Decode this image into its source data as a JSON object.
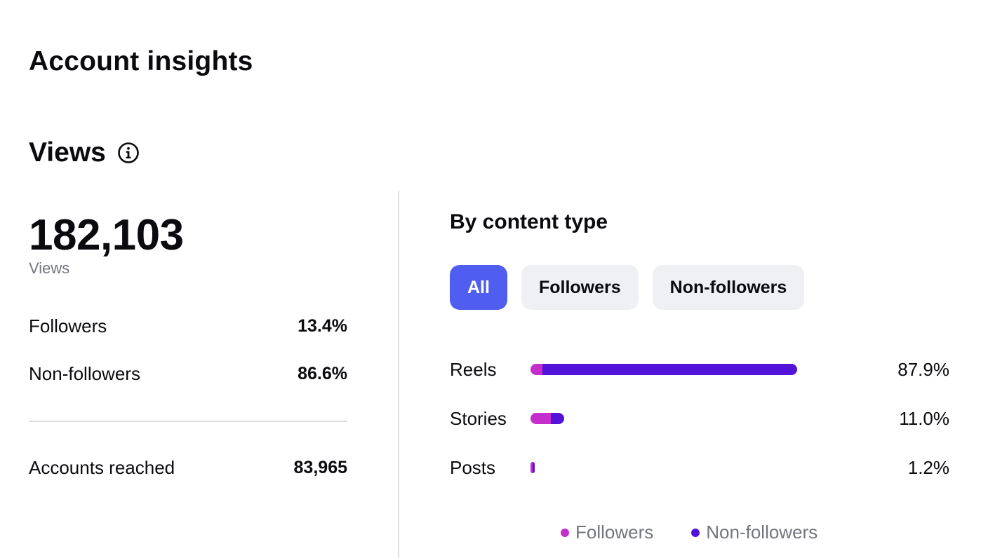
{
  "header": {
    "title": "Account insights"
  },
  "views": {
    "title": "Views",
    "info_icon": "info-circle-icon",
    "total": "182,103",
    "total_caption": "Views",
    "stats": [
      {
        "label": "Followers",
        "value": "13.4%"
      },
      {
        "label": "Non-followers",
        "value": "86.6%"
      }
    ],
    "reach": {
      "label": "Accounts reached",
      "value": "83,965"
    }
  },
  "content_type": {
    "title": "By content type",
    "tabs": [
      "All",
      "Followers",
      "Non-followers"
    ],
    "active_tab": "All"
  },
  "chart_data": {
    "type": "bar",
    "orientation": "horizontal",
    "stacked": true,
    "categories": [
      "Reels",
      "Stories",
      "Posts"
    ],
    "totals_pct": [
      87.9,
      11.0,
      1.2
    ],
    "total_labels": [
      "87.9%",
      "11.0%",
      "1.2%"
    ],
    "series": [
      {
        "name": "Followers",
        "color": "#c42ecb",
        "values": [
          3.9,
          6.8,
          0.5
        ]
      },
      {
        "name": "Non-followers",
        "color": "#5212d8",
        "values": [
          84.0,
          4.2,
          0.7
        ]
      }
    ],
    "legend": [
      "Followers",
      "Non-followers"
    ],
    "legend_position": "bottom",
    "grid": false
  },
  "colors": {
    "accent": "#4f5df0",
    "followers": "#c42ecb",
    "non_followers": "#5212d8"
  }
}
